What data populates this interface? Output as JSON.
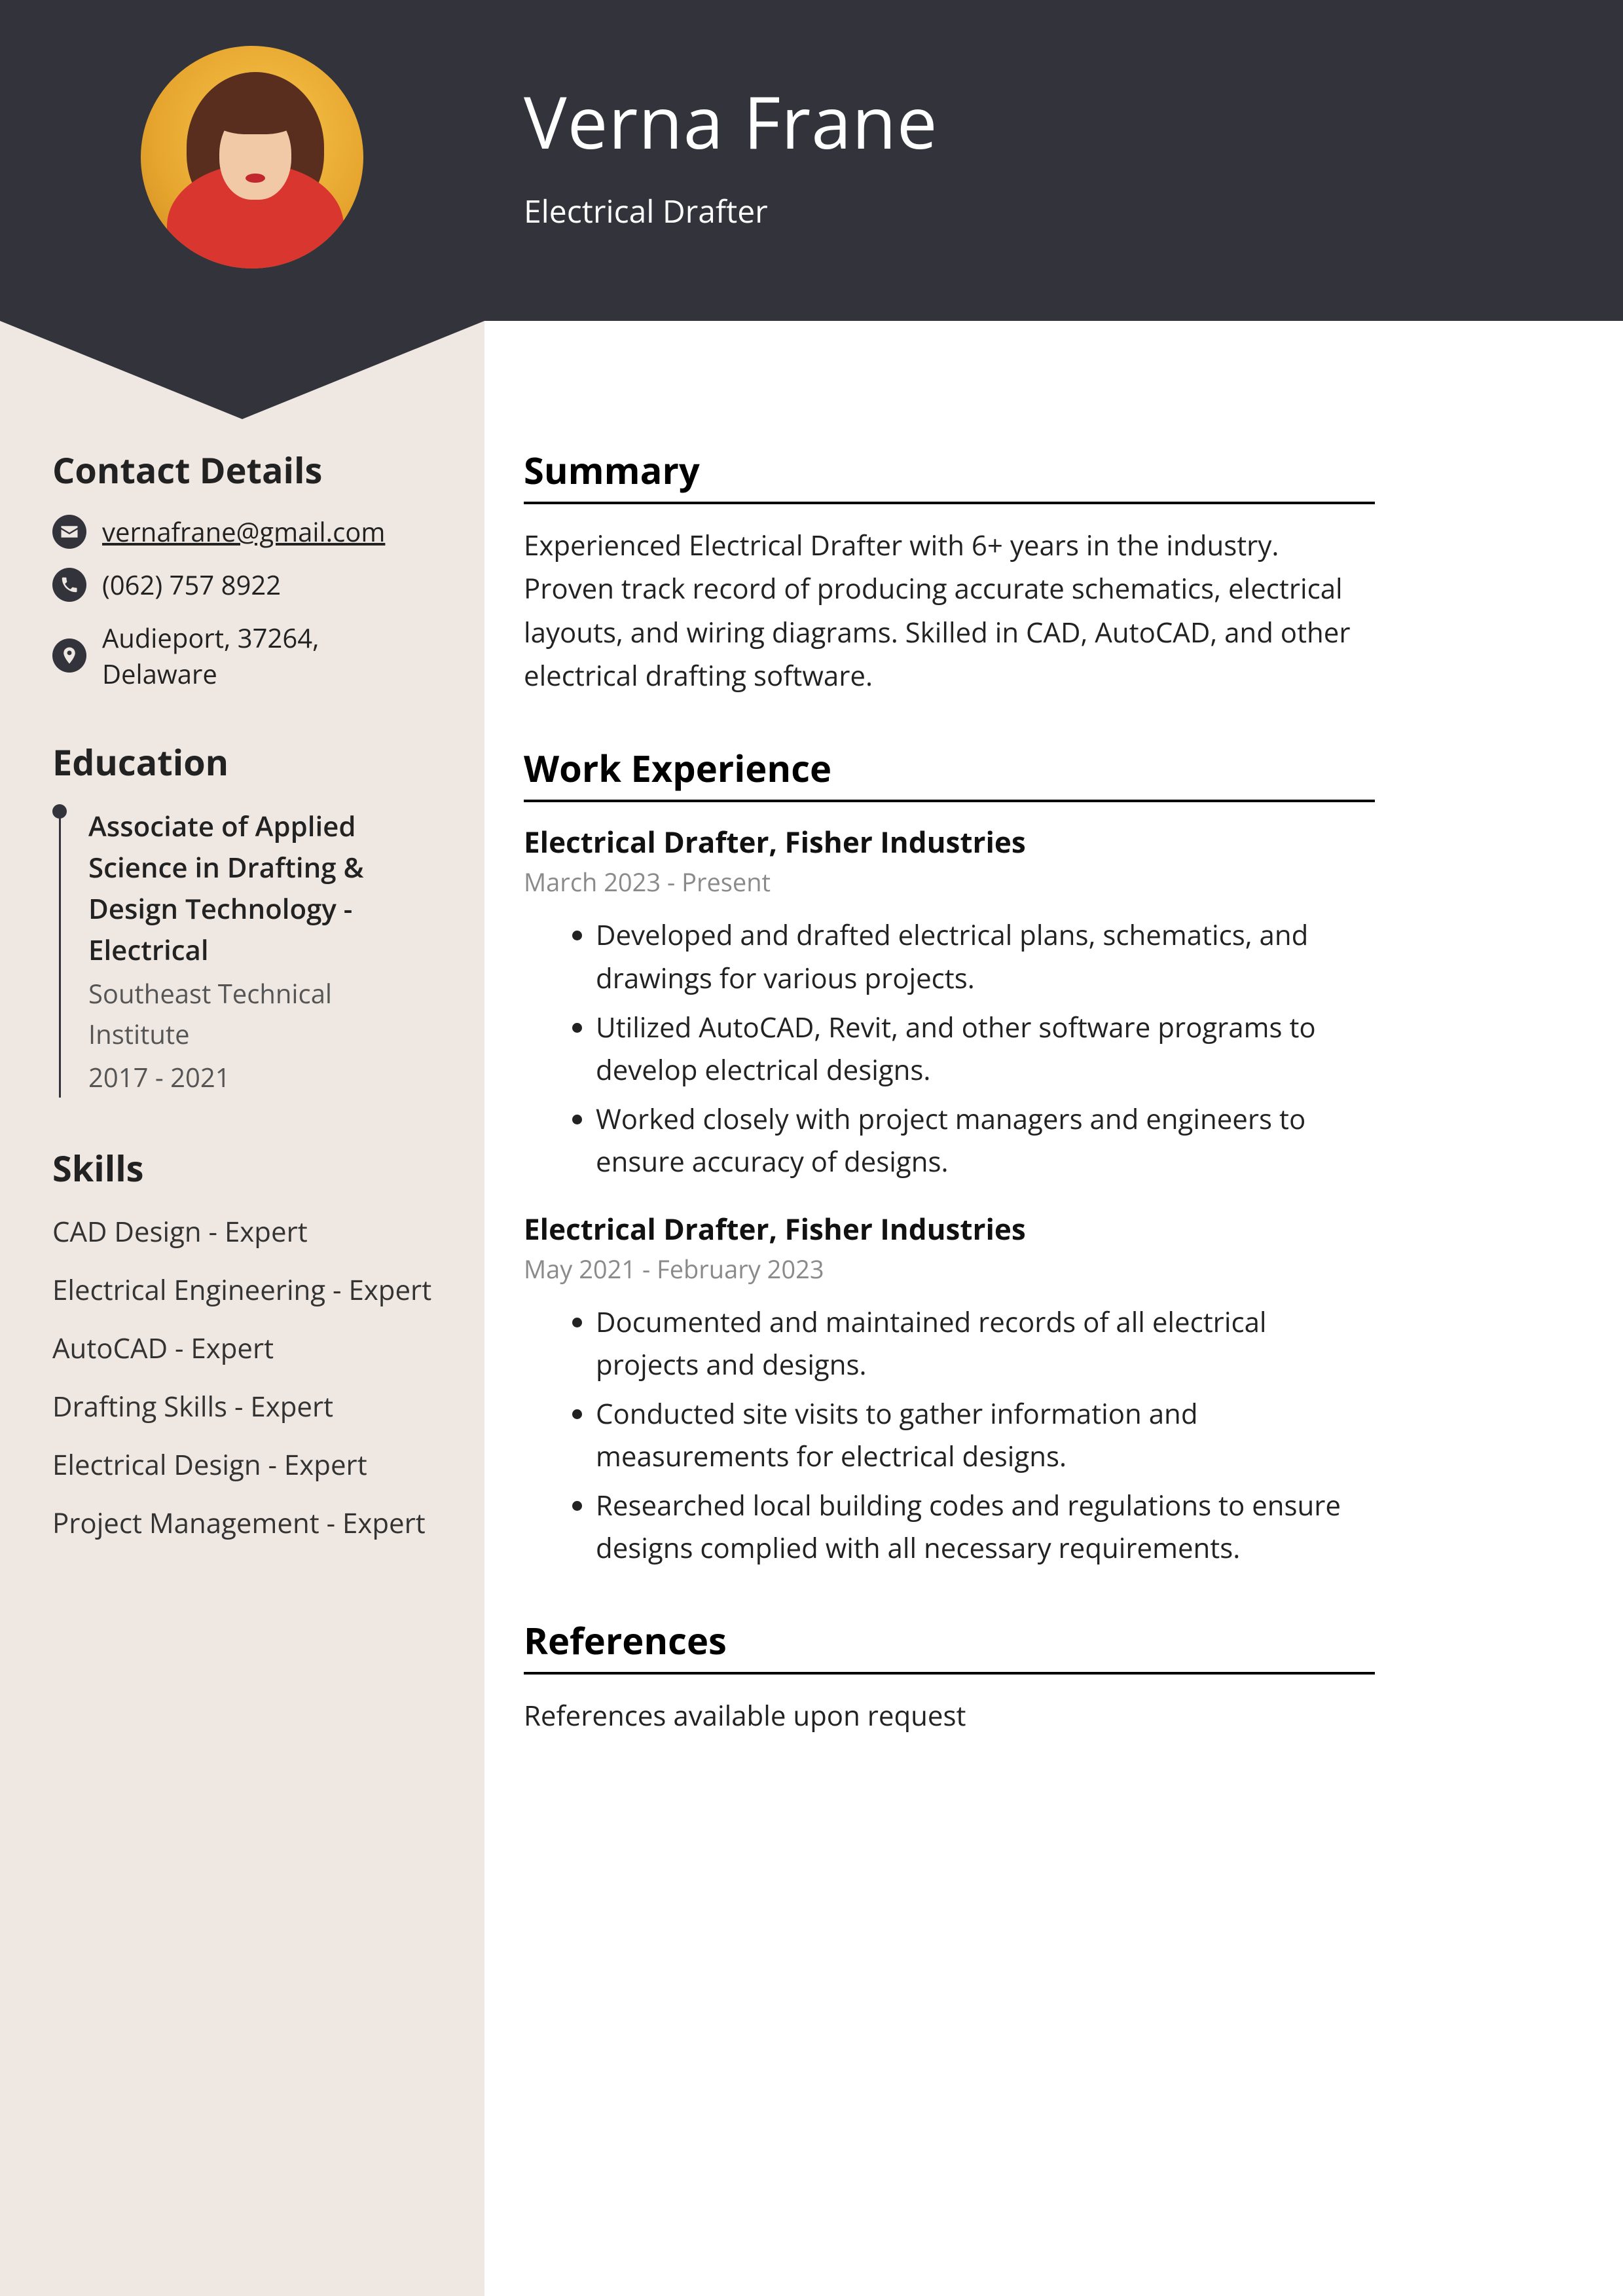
{
  "colors": {
    "header_bg": "#32333b",
    "sidebar_bg": "#efe7e1",
    "main_bg": "#ffffff",
    "text": "#222222",
    "muted": "#8a8a8a",
    "rule": "#000000"
  },
  "header": {
    "name": "Verna Frane",
    "subtitle": "Electrical Drafter"
  },
  "contact": {
    "heading": "Contact Details",
    "email": "vernafrane@gmail.com",
    "phone": "(062) 757 8922",
    "address": "Audieport, 37264, Delaware"
  },
  "education": {
    "heading": "Education",
    "items": [
      {
        "degree": "Associate of Applied Science in Drafting & Design Technology - Electrical",
        "school": "Southeast Technical Institute",
        "dates": "2017 - 2021"
      }
    ]
  },
  "skills": {
    "heading": "Skills",
    "items": [
      "CAD Design - Expert",
      "Electrical Engineering - Expert",
      "AutoCAD - Expert",
      "Drafting Skills - Expert",
      "Electrical Design - Expert",
      "Project Management - Expert"
    ]
  },
  "summary": {
    "heading": "Summary",
    "text": "Experienced Electrical Drafter with 6+ years in the industry. Proven track record of producing accurate schematics, electrical layouts, and wiring diagrams. Skilled in CAD, AutoCAD, and other electrical drafting software."
  },
  "work": {
    "heading": "Work Experience",
    "jobs": [
      {
        "title": "Electrical Drafter, Fisher Industries",
        "dates": "March 2023 - Present",
        "bullets": [
          "Developed and drafted electrical plans, schematics, and drawings for various projects.",
          "Utilized AutoCAD, Revit, and other software programs to develop electrical designs.",
          "Worked closely with project managers and engineers to ensure accuracy of designs."
        ]
      },
      {
        "title": "Electrical Drafter, Fisher Industries",
        "dates": "May 2021 - February 2023",
        "bullets": [
          "Documented and maintained records of all electrical projects and designs.",
          "Conducted site visits to gather information and measurements for electrical designs.",
          "Researched local building codes and regulations to ensure designs complied with all necessary requirements."
        ]
      }
    ]
  },
  "references": {
    "heading": "References",
    "text": "References available upon request"
  }
}
